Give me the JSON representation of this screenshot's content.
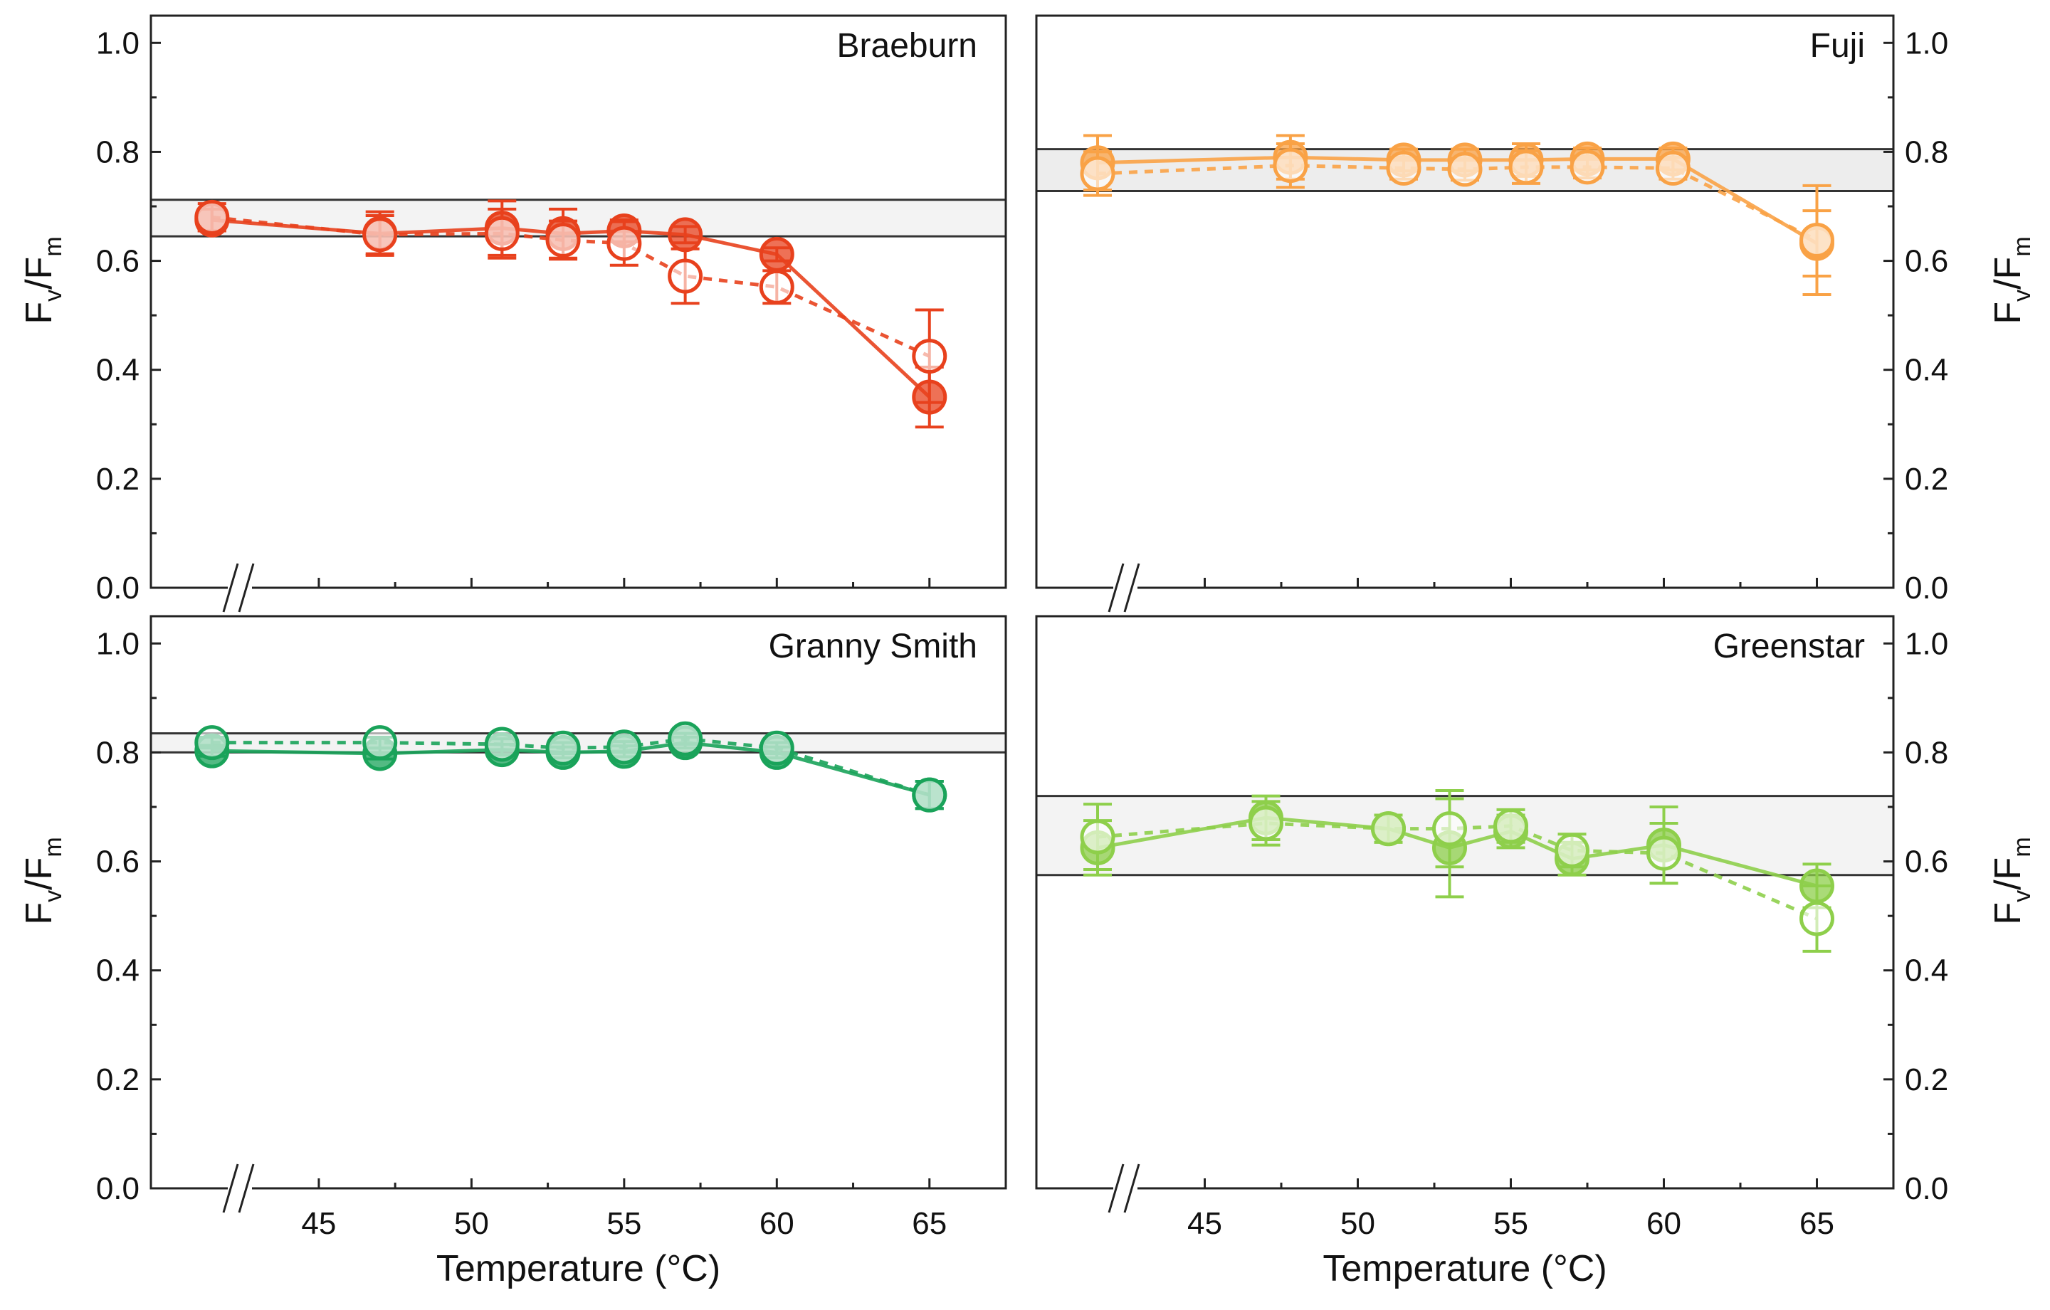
{
  "chart_data": [
    {
      "type": "line",
      "title": "Braeburn",
      "color": "#E8411D",
      "band_color": "#f3f3f3",
      "ylabel": "F_v/F_m",
      "ylim": [
        0.0,
        1.05
      ],
      "xlim": [
        39.5,
        67.5
      ],
      "axis_break": true,
      "yticks": [
        "0.0",
        "0.2",
        "0.4",
        "0.6",
        "0.8",
        "1.0"
      ],
      "xticks": [],
      "band": [
        0.645,
        0.712
      ],
      "series": [
        {
          "name": "filled",
          "style": "solid",
          "x": [
            41.5,
            47,
            51,
            53,
            55,
            57,
            60,
            65
          ],
          "y": [
            0.675,
            0.65,
            0.66,
            0.65,
            0.655,
            0.648,
            0.612,
            0.35
          ],
          "err": [
            0.02,
            0.04,
            0.05,
            0.045,
            0.02,
            0.015,
            0.012,
            0.055
          ]
        },
        {
          "name": "open",
          "style": "dashed",
          "x": [
            41.5,
            47,
            51,
            53,
            55,
            57,
            60,
            65
          ],
          "y": [
            0.68,
            0.648,
            0.65,
            0.638,
            0.632,
            0.572,
            0.552,
            0.425
          ],
          "err": [
            0.025,
            0.035,
            0.045,
            0.035,
            0.04,
            0.05,
            0.03,
            0.085
          ]
        }
      ]
    },
    {
      "type": "line",
      "title": "Fuji",
      "color": "#F9A246",
      "band_color": "#ededed",
      "ylabel": "F_v/F_m",
      "ylim": [
        0.0,
        1.05
      ],
      "xlim": [
        39.5,
        67.5
      ],
      "axis_break": true,
      "yticks": [
        "0.0",
        "0.2",
        "0.4",
        "0.6",
        "0.8",
        "1.0"
      ],
      "xticks": [],
      "band": [
        0.728,
        0.805
      ],
      "series": [
        {
          "name": "filled",
          "style": "solid",
          "x": [
            41.5,
            47.8,
            51.5,
            53.5,
            55.5,
            57.5,
            60.3,
            65
          ],
          "y": [
            0.78,
            0.79,
            0.785,
            0.785,
            0.785,
            0.787,
            0.787,
            0.632
          ],
          "err": [
            0.05,
            0.04,
            0.02,
            0.02,
            0.03,
            0.02,
            0.02,
            0.06
          ]
        },
        {
          "name": "open",
          "style": "dashed",
          "x": [
            41.5,
            47.8,
            51.5,
            53.5,
            55.5,
            57.5,
            60.3,
            65
          ],
          "y": [
            0.76,
            0.775,
            0.77,
            0.768,
            0.772,
            0.772,
            0.77,
            0.638
          ],
          "err": [
            0.04,
            0.04,
            0.02,
            0.02,
            0.03,
            0.02,
            0.02,
            0.1
          ]
        }
      ]
    },
    {
      "type": "line",
      "title": "Granny Smith",
      "color": "#1AA35A",
      "band_color": "#f3f3f3",
      "ylabel": "F_v/F_m",
      "ylim": [
        0.0,
        1.05
      ],
      "xlim": [
        39.5,
        67.5
      ],
      "axis_break": true,
      "yticks": [
        "0.0",
        "0.2",
        "0.4",
        "0.6",
        "0.8",
        "1.0"
      ],
      "xlabel": "Temperature (°C)",
      "xticks": [
        "45",
        "50",
        "55",
        "60",
        "65"
      ],
      "band": [
        0.8,
        0.835
      ],
      "series": [
        {
          "name": "filled",
          "style": "solid",
          "x": [
            41.5,
            47,
            51,
            53,
            55,
            57,
            60,
            65
          ],
          "y": [
            0.803,
            0.798,
            0.805,
            0.8,
            0.802,
            0.818,
            0.8,
            0.722
          ],
          "err": [
            0.01,
            0.01,
            0.01,
            0.01,
            0.01,
            0.01,
            0.01,
            0.025
          ]
        },
        {
          "name": "open",
          "style": "dashed",
          "x": [
            41.5,
            47,
            51,
            53,
            55,
            57,
            60,
            65
          ],
          "y": [
            0.818,
            0.818,
            0.815,
            0.808,
            0.81,
            0.825,
            0.808,
            0.722
          ],
          "err": [
            0.01,
            0.01,
            0.01,
            0.01,
            0.01,
            0.01,
            0.01,
            0.025
          ]
        }
      ]
    },
    {
      "type": "line",
      "title": "Greenstar",
      "color": "#8ECF4B",
      "band_color": "#f3f3f3",
      "ylabel": "F_v/F_m",
      "ylim": [
        0.0,
        1.05
      ],
      "xlim": [
        39.5,
        67.5
      ],
      "axis_break": true,
      "yticks": [
        "0.0",
        "0.2",
        "0.4",
        "0.6",
        "0.8",
        "1.0"
      ],
      "xlabel": "Temperature (°C)",
      "xticks": [
        "45",
        "50",
        "55",
        "60",
        "65"
      ],
      "band": [
        0.575,
        0.72
      ],
      "series": [
        {
          "name": "filled",
          "style": "solid",
          "x": [
            41.5,
            47,
            51,
            53,
            55,
            57,
            60,
            65
          ],
          "y": [
            0.625,
            0.68,
            0.66,
            0.625,
            0.655,
            0.605,
            0.63,
            0.555
          ],
          "err": [
            0.05,
            0.04,
            0.025,
            0.09,
            0.03,
            0.03,
            0.07,
            0.04
          ]
        },
        {
          "name": "open",
          "style": "dashed",
          "x": [
            41.5,
            47,
            51,
            53,
            55,
            57,
            60,
            65
          ],
          "y": [
            0.645,
            0.67,
            0.66,
            0.66,
            0.665,
            0.62,
            0.615,
            0.495
          ],
          "err": [
            0.06,
            0.04,
            0.025,
            0.07,
            0.03,
            0.03,
            0.055,
            0.06
          ]
        }
      ]
    }
  ]
}
